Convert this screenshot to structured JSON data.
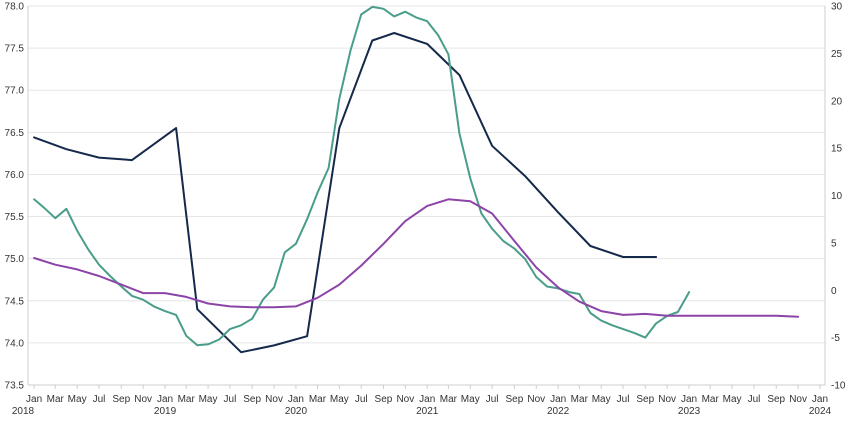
{
  "chart_data": {
    "type": "line",
    "title": "",
    "xlabel": "",
    "ylabel_left": "",
    "ylabel_right": "",
    "grid": true,
    "legend": "none",
    "x_range": [
      "2017-12-15",
      "2024-01-15"
    ],
    "y_left": {
      "range": [
        73.5,
        78.0
      ],
      "ticks": [
        "73.5",
        "74.0",
        "74.5",
        "75.0",
        "75.5",
        "76.0",
        "76.5",
        "77.0",
        "77.5",
        "78.0"
      ]
    },
    "y_right": {
      "range": [
        -10,
        30
      ],
      "ticks": [
        "-10",
        "-5",
        "0",
        "5",
        "10",
        "15",
        "20",
        "25",
        "30"
      ]
    },
    "month_ticks": [
      {
        "date": "2018-01-01",
        "label": "Jan"
      },
      {
        "date": "2018-03-01",
        "label": "Mar"
      },
      {
        "date": "2018-05-01",
        "label": "May"
      },
      {
        "date": "2018-07-01",
        "label": "Jul"
      },
      {
        "date": "2018-09-01",
        "label": "Sep"
      },
      {
        "date": "2018-11-01",
        "label": "Nov"
      },
      {
        "date": "2019-01-01",
        "label": "Jan"
      },
      {
        "date": "2019-03-01",
        "label": "Mar"
      },
      {
        "date": "2019-05-01",
        "label": "May"
      },
      {
        "date": "2019-07-01",
        "label": "Jul"
      },
      {
        "date": "2019-09-01",
        "label": "Sep"
      },
      {
        "date": "2019-11-01",
        "label": "Nov"
      },
      {
        "date": "2020-01-01",
        "label": "Jan"
      },
      {
        "date": "2020-03-01",
        "label": "Mar"
      },
      {
        "date": "2020-05-01",
        "label": "May"
      },
      {
        "date": "2020-07-01",
        "label": "Jul"
      },
      {
        "date": "2020-09-01",
        "label": "Sep"
      },
      {
        "date": "2020-11-01",
        "label": "Nov"
      },
      {
        "date": "2021-01-01",
        "label": "Jan"
      },
      {
        "date": "2021-03-01",
        "label": "Mar"
      },
      {
        "date": "2021-05-01",
        "label": "May"
      },
      {
        "date": "2021-07-01",
        "label": "Jul"
      },
      {
        "date": "2021-09-01",
        "label": "Sep"
      },
      {
        "date": "2021-11-01",
        "label": "Nov"
      },
      {
        "date": "2022-01-01",
        "label": "Jan"
      },
      {
        "date": "2022-03-01",
        "label": "Mar"
      },
      {
        "date": "2022-05-01",
        "label": "May"
      },
      {
        "date": "2022-07-01",
        "label": "Jul"
      },
      {
        "date": "2022-09-01",
        "label": "Sep"
      },
      {
        "date": "2022-11-01",
        "label": "Nov"
      },
      {
        "date": "2023-01-01",
        "label": "Jan"
      },
      {
        "date": "2023-03-01",
        "label": "Mar"
      },
      {
        "date": "2023-05-01",
        "label": "May"
      },
      {
        "date": "2023-07-01",
        "label": "Jul"
      },
      {
        "date": "2023-09-01",
        "label": "Sep"
      },
      {
        "date": "2023-11-01",
        "label": "Nov"
      },
      {
        "date": "2024-01-01",
        "label": "Jan"
      }
    ],
    "year_ticks": [
      {
        "date": "2017-12-01",
        "label": "2018"
      },
      {
        "date": "2019-01-01",
        "label": "2019"
      },
      {
        "date": "2020-01-01",
        "label": "2020"
      },
      {
        "date": "2021-01-01",
        "label": "2021"
      },
      {
        "date": "2022-01-01",
        "label": "2022"
      },
      {
        "date": "2023-01-01",
        "label": "2023"
      },
      {
        "date": "2024-01-01",
        "label": "2024"
      }
    ],
    "series": [
      {
        "axis": "left",
        "color": "#15294b",
        "points": [
          [
            "2018-01-01",
            76.44
          ],
          [
            "2018-04-01",
            76.3
          ],
          [
            "2018-07-01",
            76.2
          ],
          [
            "2018-10-01",
            76.17
          ],
          [
            "2019-02-01",
            76.55
          ],
          [
            "2019-04-01",
            74.4
          ],
          [
            "2019-08-01",
            73.89
          ],
          [
            "2019-11-01",
            73.97
          ],
          [
            "2020-02-01",
            74.08
          ],
          [
            "2020-05-01",
            76.55
          ],
          [
            "2020-08-01",
            77.59
          ],
          [
            "2020-10-01",
            77.68
          ],
          [
            "2021-01-01",
            77.55
          ],
          [
            "2021-04-01",
            77.18
          ],
          [
            "2021-07-01",
            76.34
          ],
          [
            "2021-10-01",
            75.98
          ],
          [
            "2022-01-01",
            75.55
          ],
          [
            "2022-04-01",
            75.15
          ],
          [
            "2022-07-01",
            75.02
          ],
          [
            "2022-10-01",
            75.02
          ]
        ]
      },
      {
        "axis": "right",
        "color": "#4a9d8a",
        "points": [
          [
            "2018-01-01",
            9.6
          ],
          [
            "2018-02-01",
            8.6
          ],
          [
            "2018-03-01",
            7.6
          ],
          [
            "2018-04-01",
            8.6
          ],
          [
            "2018-05-01",
            6.3
          ],
          [
            "2018-06-01",
            4.3
          ],
          [
            "2018-07-01",
            2.7
          ],
          [
            "2018-08-01",
            1.5
          ],
          [
            "2018-09-01",
            0.4
          ],
          [
            "2018-10-01",
            -0.6
          ],
          [
            "2018-11-01",
            -1.0
          ],
          [
            "2018-12-01",
            -1.7
          ],
          [
            "2019-01-01",
            -2.2
          ],
          [
            "2019-02-01",
            -2.6
          ],
          [
            "2019-03-01",
            -4.8
          ],
          [
            "2019-04-01",
            -5.8
          ],
          [
            "2019-05-01",
            -5.7
          ],
          [
            "2019-06-01",
            -5.2
          ],
          [
            "2019-07-01",
            -4.1
          ],
          [
            "2019-08-01",
            -3.7
          ],
          [
            "2019-09-01",
            -3.0
          ],
          [
            "2019-10-01",
            -1.0
          ],
          [
            "2019-11-01",
            0.3
          ],
          [
            "2019-12-01",
            4.0
          ],
          [
            "2020-01-01",
            4.9
          ],
          [
            "2020-02-01",
            7.5
          ],
          [
            "2020-03-01",
            10.3
          ],
          [
            "2020-04-01",
            12.9
          ],
          [
            "2020-05-01",
            20.2
          ],
          [
            "2020-06-01",
            25.3
          ],
          [
            "2020-07-01",
            29.1
          ],
          [
            "2020-08-01",
            29.9
          ],
          [
            "2020-09-01",
            29.7
          ],
          [
            "2020-10-01",
            28.9
          ],
          [
            "2020-11-01",
            29.4
          ],
          [
            "2020-12-01",
            28.8
          ],
          [
            "2021-01-01",
            28.4
          ],
          [
            "2021-02-01",
            26.9
          ],
          [
            "2021-03-01",
            24.9
          ],
          [
            "2021-04-01",
            16.5
          ],
          [
            "2021-05-01",
            11.8
          ],
          [
            "2021-06-01",
            8.1
          ],
          [
            "2021-07-01",
            6.5
          ],
          [
            "2021-08-01",
            5.2
          ],
          [
            "2021-09-01",
            4.4
          ],
          [
            "2021-10-01",
            3.3
          ],
          [
            "2021-11-01",
            1.4
          ],
          [
            "2021-12-01",
            0.4
          ],
          [
            "2022-01-01",
            0.2
          ],
          [
            "2022-02-01",
            -0.2
          ],
          [
            "2022-03-01",
            -0.4
          ],
          [
            "2022-04-01",
            -2.4
          ],
          [
            "2022-05-01",
            -3.2
          ],
          [
            "2022-06-01",
            -3.7
          ],
          [
            "2022-07-01",
            -4.1
          ],
          [
            "2022-08-01",
            -4.5
          ],
          [
            "2022-09-01",
            -5.0
          ],
          [
            "2022-10-01",
            -3.5
          ],
          [
            "2022-11-01",
            -2.7
          ],
          [
            "2022-12-01",
            -2.3
          ],
          [
            "2023-01-01",
            -0.2
          ]
        ]
      },
      {
        "axis": "right",
        "color": "#8c44a8",
        "points": [
          [
            "2018-01-01",
            3.4
          ],
          [
            "2018-03-01",
            2.7
          ],
          [
            "2018-05-01",
            2.2
          ],
          [
            "2018-07-01",
            1.5
          ],
          [
            "2018-09-01",
            0.6
          ],
          [
            "2018-11-01",
            -0.3
          ],
          [
            "2019-01-01",
            -0.3
          ],
          [
            "2019-03-01",
            -0.7
          ],
          [
            "2019-05-01",
            -1.4
          ],
          [
            "2019-07-01",
            -1.7
          ],
          [
            "2019-09-01",
            -1.8
          ],
          [
            "2019-11-01",
            -1.8
          ],
          [
            "2020-01-01",
            -1.7
          ],
          [
            "2020-03-01",
            -0.8
          ],
          [
            "2020-05-01",
            0.6
          ],
          [
            "2020-07-01",
            2.6
          ],
          [
            "2020-09-01",
            4.9
          ],
          [
            "2020-11-01",
            7.3
          ],
          [
            "2021-01-01",
            8.9
          ],
          [
            "2021-03-01",
            9.6
          ],
          [
            "2021-05-01",
            9.4
          ],
          [
            "2021-07-01",
            8.1
          ],
          [
            "2021-09-01",
            5.2
          ],
          [
            "2021-11-01",
            2.4
          ],
          [
            "2022-01-01",
            0.3
          ],
          [
            "2022-03-01",
            -1.2
          ],
          [
            "2022-05-01",
            -2.2
          ],
          [
            "2022-07-01",
            -2.6
          ],
          [
            "2022-09-01",
            -2.5
          ],
          [
            "2022-11-01",
            -2.7
          ],
          [
            "2023-01-01",
            -2.7
          ],
          [
            "2023-03-01",
            -2.7
          ],
          [
            "2023-05-01",
            -2.7
          ],
          [
            "2023-07-01",
            -2.7
          ],
          [
            "2023-09-01",
            -2.7
          ],
          [
            "2023-11-01",
            -2.8
          ]
        ]
      }
    ]
  }
}
